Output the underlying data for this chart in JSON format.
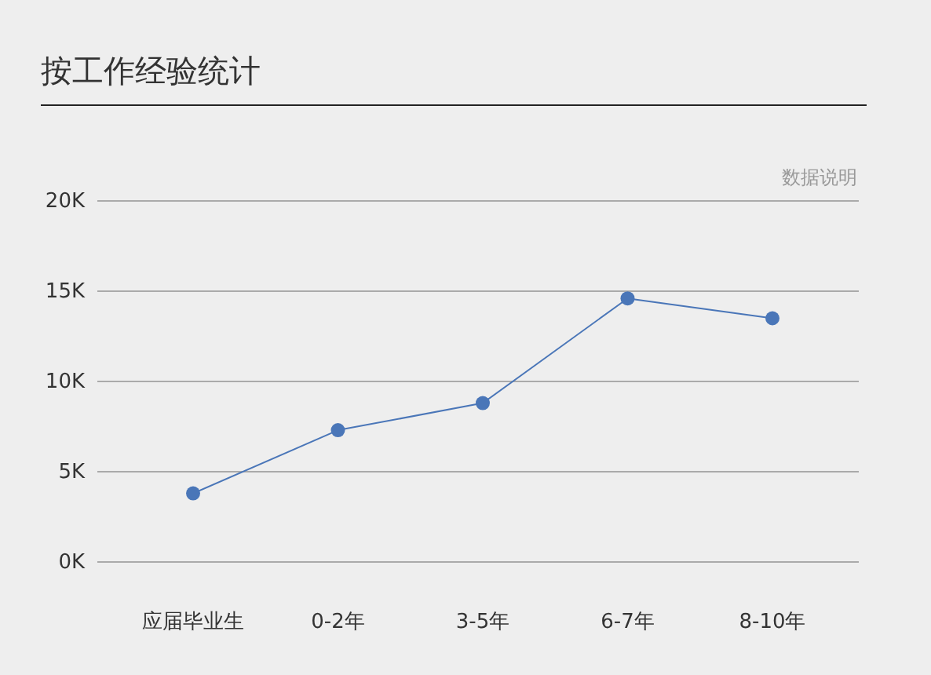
{
  "chart_data": {
    "type": "line",
    "title": "按工作经验统计",
    "annotations": [
      "数据说明"
    ],
    "categories": [
      "应届毕业生",
      "0-2年",
      "3-5年",
      "6-7年",
      "8-10年"
    ],
    "series": [
      {
        "color": "#4a76b8",
        "values": [
          3800,
          7300,
          8800,
          14600,
          13500
        ]
      }
    ],
    "ylim": [
      0,
      20000
    ],
    "yticks": [
      {
        "value": 0,
        "label": "0K"
      },
      {
        "value": 5000,
        "label": "5K"
      },
      {
        "value": 10000,
        "label": "10K"
      },
      {
        "value": 15000,
        "label": "15K"
      },
      {
        "value": 20000,
        "label": "20K"
      }
    ],
    "grid": "y",
    "marker": "circle",
    "line_style": "solid"
  }
}
